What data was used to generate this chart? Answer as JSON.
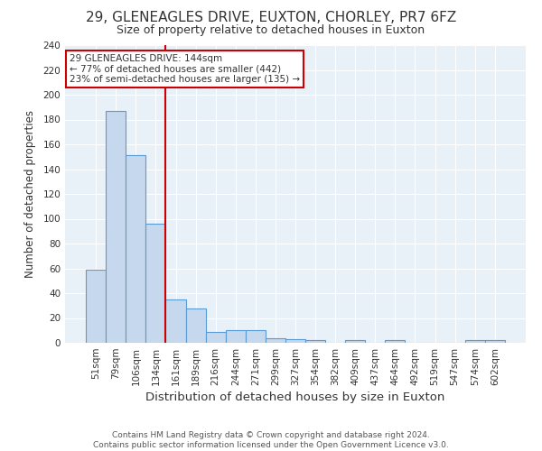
{
  "title1": "29, GLENEAGLES DRIVE, EUXTON, CHORLEY, PR7 6FZ",
  "title2": "Size of property relative to detached houses in Euxton",
  "xlabel": "Distribution of detached houses by size in Euxton",
  "ylabel": "Number of detached properties",
  "categories": [
    "51sqm",
    "79sqm",
    "106sqm",
    "134sqm",
    "161sqm",
    "189sqm",
    "216sqm",
    "244sqm",
    "271sqm",
    "299sqm",
    "327sqm",
    "354sqm",
    "382sqm",
    "409sqm",
    "437sqm",
    "464sqm",
    "492sqm",
    "519sqm",
    "547sqm",
    "574sqm",
    "602sqm"
  ],
  "values": [
    59,
    187,
    151,
    96,
    35,
    28,
    9,
    10,
    10,
    4,
    3,
    2,
    0,
    2,
    0,
    2,
    0,
    0,
    0,
    2,
    2
  ],
  "bar_color": "#c5d8ed",
  "bar_edge_color": "#5b9bd5",
  "vline_x": 3.5,
  "vline_color": "#cc0000",
  "annotation_text": "29 GLENEAGLES DRIVE: 144sqm\n← 77% of detached houses are smaller (442)\n23% of semi-detached houses are larger (135) →",
  "annotation_box_color": "#ffffff",
  "annotation_box_edge": "#cc0000",
  "ylim": [
    0,
    240
  ],
  "yticks": [
    0,
    20,
    40,
    60,
    80,
    100,
    120,
    140,
    160,
    180,
    200,
    220,
    240
  ],
  "footnote": "Contains HM Land Registry data © Crown copyright and database right 2024.\nContains public sector information licensed under the Open Government Licence v3.0.",
  "fig_bg_color": "#ffffff",
  "plot_bg_color": "#e8f0f8",
  "title1_fontsize": 11,
  "title2_fontsize": 9,
  "xlabel_fontsize": 9.5,
  "ylabel_fontsize": 8.5,
  "tick_fontsize": 7.5,
  "footnote_fontsize": 6.5,
  "annot_fontsize": 7.5
}
